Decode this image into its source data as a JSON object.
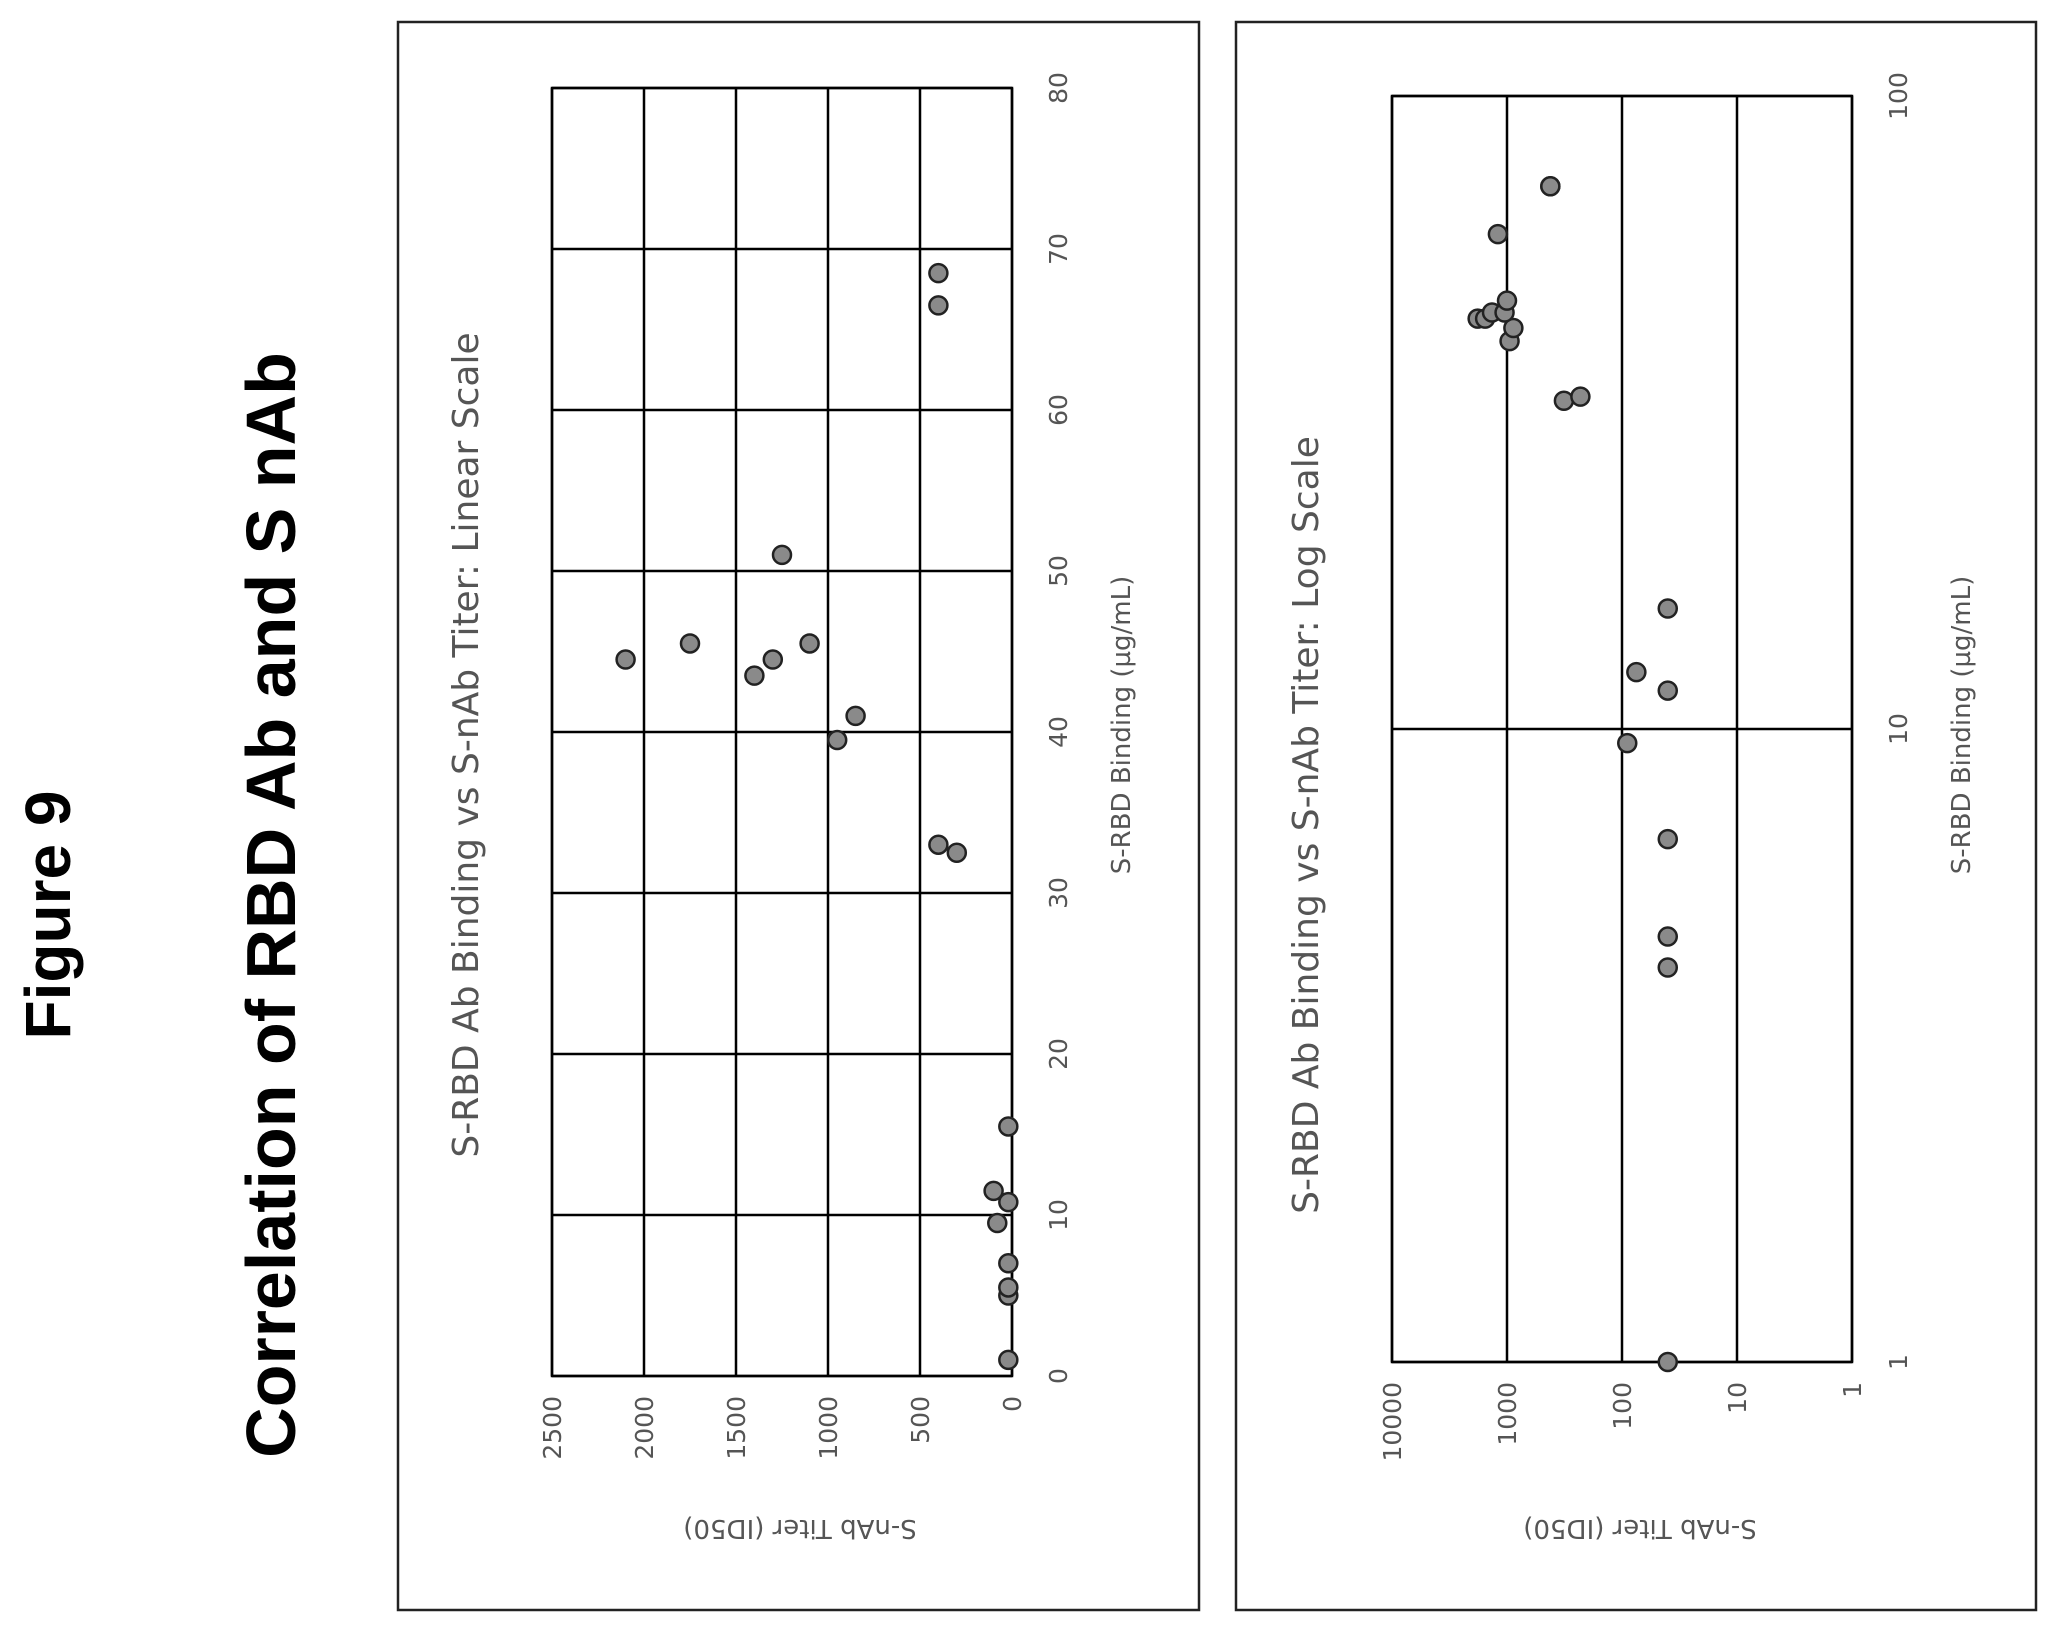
{
  "figure": {
    "label": "Figure 9",
    "title": "Correlation of RBD Ab and S nAb"
  },
  "chart_data": [
    {
      "type": "scatter",
      "title": "S-RBD Ab Binding vs S-nAb Titer: Linear Scale",
      "xlabel": "S-RBD Binding (µg/mL)",
      "ylabel": "S-nAb Titer (ID50)",
      "xlim": [
        0,
        80
      ],
      "ylim": [
        0,
        2500
      ],
      "x_ticks": [
        "0",
        "10",
        "20",
        "30",
        "40",
        "50",
        "60",
        "70",
        "80"
      ],
      "y_ticks": [
        "0",
        "500",
        "1000",
        "1500",
        "2000",
        "2500"
      ],
      "grid": true,
      "x": [
        1,
        5,
        5.5,
        7,
        9.5,
        10.8,
        11.5,
        15.5,
        32.5,
        33,
        39.5,
        41,
        43.5,
        44.5,
        44.5,
        45.5,
        45.5,
        51,
        66.5,
        68.5
      ],
      "y": [
        20,
        20,
        20,
        20,
        80,
        20,
        100,
        20,
        300,
        400,
        950,
        850,
        1400,
        1300,
        2100,
        1750,
        1100,
        1250,
        400,
        400
      ]
    },
    {
      "type": "scatter",
      "title": "S-RBD Ab Binding vs S-nAb Titer: Log Scale",
      "xlabel": "S-RBD Binding (µg/mL)",
      "ylabel": "S-nAb Titer (ID50)",
      "xscale": "log",
      "yscale": "log",
      "xlim": [
        1,
        100
      ],
      "ylim": [
        1,
        10000
      ],
      "x_ticks": [
        "1",
        "10",
        "100"
      ],
      "y_ticks": [
        "1",
        "10",
        "100",
        "1000",
        "10000"
      ],
      "grid": true,
      "x": [
        1,
        4.2,
        4.7,
        6.7,
        9.5,
        11.5,
        12.3,
        15.5,
        33,
        33.5,
        41,
        43,
        44.5,
        44.5,
        45.5,
        45.5,
        47.5,
        60.5,
        72,
        72
      ],
      "y": [
        40,
        40,
        40,
        40,
        90,
        40,
        75,
        40,
        320,
        230,
        950,
        880,
        1800,
        1550,
        1350,
        1050,
        1000,
        1200,
        420,
        420
      ]
    }
  ]
}
